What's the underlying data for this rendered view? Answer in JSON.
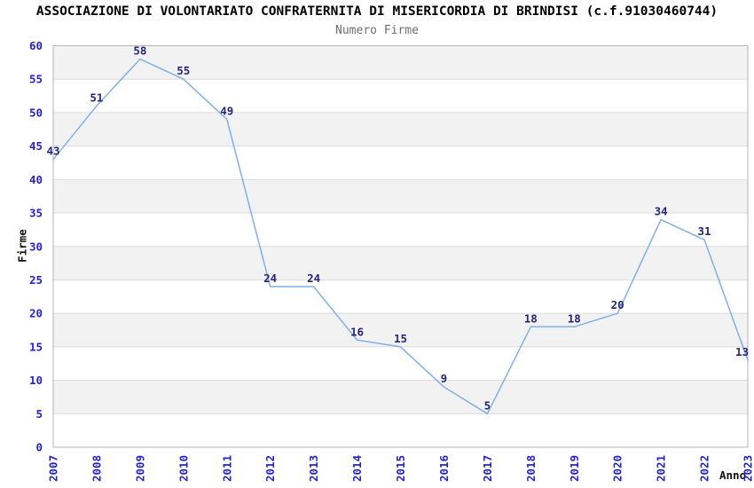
{
  "chart_data": {
    "type": "line",
    "title": "ASSOCIAZIONE DI VOLONTARIATO CONFRATERNITA DI MISERICORDIA DI BRINDISI (c.f.91030460744)",
    "subtitle": "Numero Firme",
    "xlabel": "Anno",
    "ylabel": "Firme",
    "categories": [
      "2007",
      "2008",
      "2009",
      "2010",
      "2011",
      "2012",
      "2013",
      "2014",
      "2015",
      "2016",
      "2017",
      "2018",
      "2019",
      "2020",
      "2021",
      "2022",
      "2023"
    ],
    "values": [
      43,
      51,
      58,
      55,
      49,
      24,
      24,
      16,
      15,
      9,
      5,
      18,
      18,
      20,
      34,
      31,
      13
    ],
    "ylim": [
      0,
      60
    ],
    "yticks": [
      0,
      5,
      10,
      15,
      20,
      25,
      30,
      35,
      40,
      45,
      50,
      55,
      60
    ],
    "grid": "horizontal",
    "legend": "none",
    "band_fill_ranges": [
      [
        5,
        10
      ],
      [
        15,
        20
      ],
      [
        25,
        30
      ],
      [
        35,
        40
      ],
      [
        45,
        50
      ],
      [
        55,
        60
      ]
    ],
    "colors": {
      "line": "#7fb0e6",
      "data_label": "#26267a",
      "tick_label": "#2323cd",
      "band": "#f2f2f2",
      "grid": "#dcdcdc",
      "border": "#b5b5b5",
      "title": "#000000",
      "subtitle": "#6e6e6e",
      "axis_title": "#111111"
    }
  }
}
